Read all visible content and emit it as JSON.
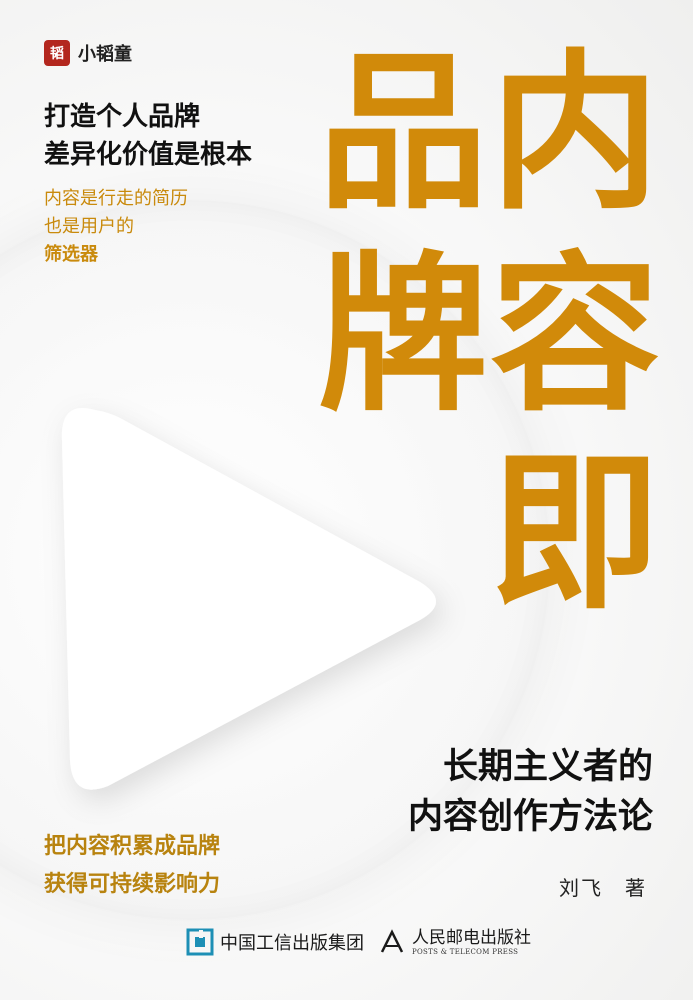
{
  "brand": {
    "logo_char": "韬",
    "name": "小韬童"
  },
  "tagline": {
    "line1": "打造个人品牌",
    "line2": "差异化价值是根本"
  },
  "subtag": {
    "line1": "内容是行走的简历",
    "line2": "也是用户的",
    "line3": "筛选器"
  },
  "title": {
    "c1": "品",
    "c2": "牌",
    "c3": "内",
    "c4": "容",
    "c5": "即"
  },
  "subtitle": {
    "line1": "长期主义者的",
    "line2": "内容创作方法论"
  },
  "slogan": {
    "line1": "把内容积累成品牌",
    "line2": "获得可持续影响力"
  },
  "author": "刘飞　著",
  "publishers": {
    "p1_name": "中国工信出版集团",
    "p2_name": "人民邮电出版社",
    "p2_en": "POSTS & TELECOM PRESS"
  },
  "colors": {
    "accent": "#d18a0a",
    "brand_red": "#b3271e",
    "text": "#111111"
  }
}
